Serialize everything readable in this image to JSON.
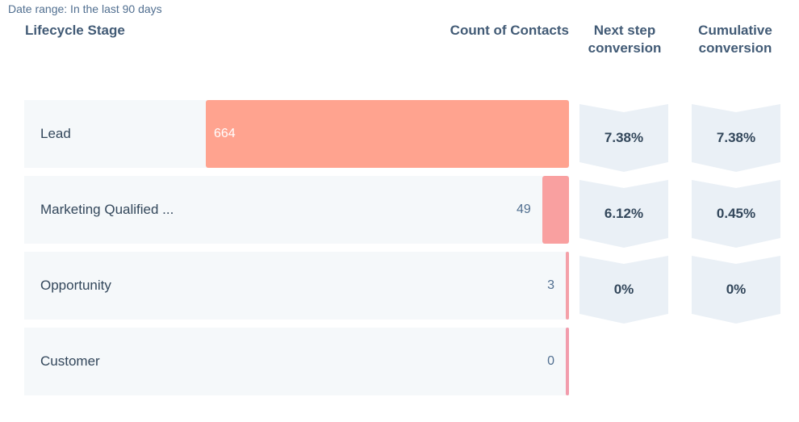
{
  "date_range": "Date range: In the last 90 days",
  "headers": {
    "stage": "Lifecycle Stage",
    "count": "Count of Contacts",
    "next_step_line1": "Next step",
    "next_step_line2": "conversion",
    "cumulative_line1": "Cumulative",
    "cumulative_line2": "conversion"
  },
  "colors": {
    "lead_bar": "#ffa38f",
    "mql_bar": "#f9a0a0",
    "opp_bar": "#f4a0a8",
    "cust_bar": "#f29cac",
    "row_bg": "#f5f8fa",
    "chevron": "#eaf0f6"
  },
  "chart_data": {
    "type": "bar",
    "orientation": "horizontal",
    "categories": [
      "Lead",
      "Marketing Qualified ...",
      "Opportunity",
      "Customer"
    ],
    "values": [
      664,
      49,
      3,
      0
    ],
    "value_labels": [
      "664",
      "49",
      "3",
      "0"
    ],
    "xlim": [
      0,
      664
    ],
    "next_step_conversion": [
      "7.38%",
      "6.12%",
      "0%"
    ],
    "cumulative_conversion": [
      "7.38%",
      "0.45%",
      "0%"
    ]
  }
}
